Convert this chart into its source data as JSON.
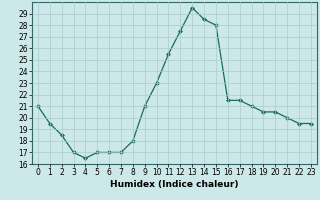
{
  "x": [
    0,
    1,
    2,
    3,
    4,
    5,
    6,
    7,
    8,
    9,
    10,
    11,
    12,
    13,
    14,
    15,
    16,
    17,
    18,
    19,
    20,
    21,
    22,
    23
  ],
  "y": [
    21,
    19.5,
    18.5,
    17,
    16.5,
    17,
    17,
    17,
    18,
    21,
    23,
    25.5,
    27.5,
    29.5,
    28.5,
    28,
    21.5,
    21.5,
    21,
    20.5,
    20.5,
    20,
    19.5,
    19.5
  ],
  "xlabel": "Humidex (Indice chaleur)",
  "ylim": [
    16,
    30
  ],
  "xlim": [
    -0.5,
    23.5
  ],
  "yticks": [
    16,
    17,
    18,
    19,
    20,
    21,
    22,
    23,
    24,
    25,
    26,
    27,
    28,
    29
  ],
  "xticks": [
    0,
    1,
    2,
    3,
    4,
    5,
    6,
    7,
    8,
    9,
    10,
    11,
    12,
    13,
    14,
    15,
    16,
    17,
    18,
    19,
    20,
    21,
    22,
    23
  ],
  "xtick_labels": [
    "0",
    "1",
    "2",
    "3",
    "4",
    "5",
    "6",
    "7",
    "8",
    "9",
    "10",
    "11",
    "12",
    "13",
    "14",
    "15",
    "16",
    "17",
    "18",
    "19",
    "20",
    "21",
    "22",
    "23"
  ],
  "line_color": "#1a6b5a",
  "marker": "D",
  "marker_size": 2.0,
  "bg_color": "#cce8e8",
  "grid_color": "#aacccc",
  "axis_fontsize": 6.5,
  "tick_fontsize": 5.5
}
